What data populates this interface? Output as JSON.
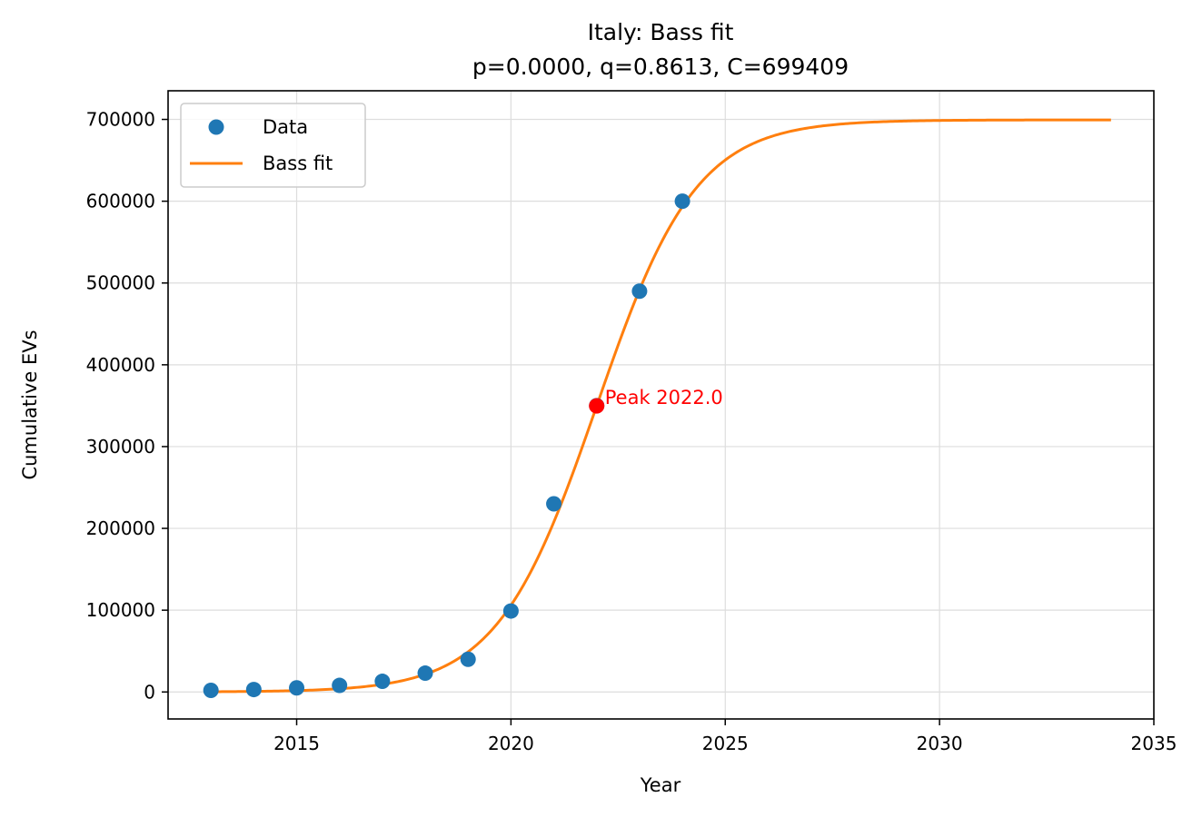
{
  "chart_data": {
    "type": "scatter",
    "title": "Italy: Bass fit",
    "subtitle": "p=0.0000, q=0.8613, C=699409",
    "xlabel": "Year",
    "ylabel": "Cumulative EVs",
    "xlim": [
      2012,
      2035
    ],
    "ylim": [
      -33000,
      735000
    ],
    "xticks": [
      2015,
      2020,
      2025,
      2030,
      2035
    ],
    "yticks": [
      0,
      100000,
      200000,
      300000,
      400000,
      500000,
      600000,
      700000
    ],
    "grid": true,
    "legend_position": "top-left",
    "series": [
      {
        "name": "Data",
        "kind": "scatter",
        "color": "#1f77b4",
        "x": [
          2013,
          2014,
          2015,
          2016,
          2017,
          2018,
          2019,
          2020,
          2021,
          2022,
          2023,
          2024
        ],
        "y": [
          2000,
          3000,
          5000,
          8000,
          13000,
          23000,
          40000,
          99000,
          230000,
          350000,
          490000,
          600000
        ]
      },
      {
        "name": "Bass fit",
        "kind": "line",
        "color": "#ff7f0e",
        "model": "bass",
        "p": 0.0,
        "q": 0.8613,
        "C": 699409,
        "peak": 2022.0,
        "x_range": [
          2013,
          2034
        ]
      }
    ],
    "annotations": [
      {
        "text": "Peak 2022.0",
        "x": 2022.0,
        "y": 349700,
        "color": "#ff0000"
      }
    ]
  }
}
